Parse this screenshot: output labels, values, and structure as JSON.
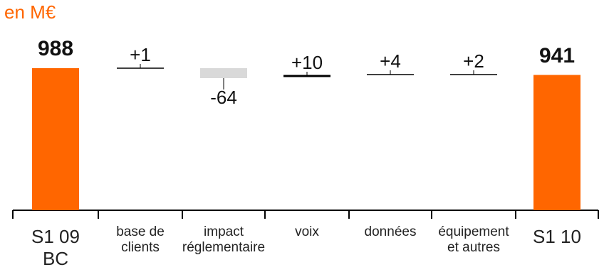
{
  "unit_label": "en M€",
  "colors": {
    "total": "#ff6600",
    "negative": "#d9d9d9",
    "positive_line": "#000000",
    "unit": "#ff6600"
  },
  "chart_data": {
    "type": "bar",
    "subtype": "waterfall",
    "unit": "en M€",
    "categories": [
      "S1 09 BC",
      "base de clients",
      "impact réglementaire",
      "voix",
      "données",
      "équipement et autres",
      "S1 10"
    ],
    "category_lines": [
      [
        "S1 09",
        "BC"
      ],
      [
        "base de",
        "clients"
      ],
      [
        "impact",
        "réglementaire"
      ],
      [
        "voix"
      ],
      [
        "données"
      ],
      [
        "équipement",
        "et autres"
      ],
      [
        "S1 10"
      ]
    ],
    "values": [
      988,
      1,
      -64,
      10,
      4,
      2,
      941
    ],
    "kinds": [
      "total",
      "delta",
      "delta",
      "delta",
      "delta",
      "delta",
      "total"
    ],
    "value_labels": [
      "988",
      "+1",
      "-64",
      "+10",
      "+4",
      "+2",
      "941"
    ]
  }
}
